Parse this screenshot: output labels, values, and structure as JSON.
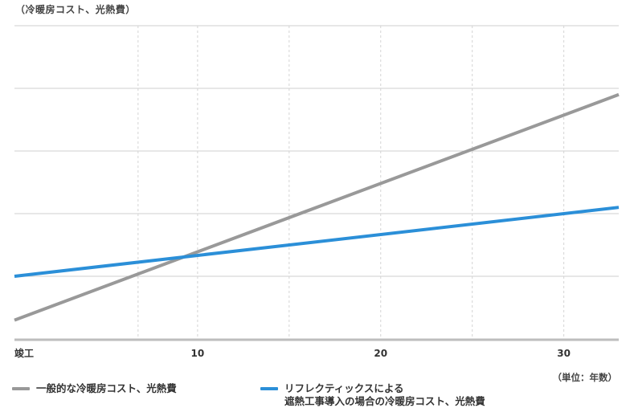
{
  "chart_data": {
    "type": "line",
    "y_unit_label": "（冷暖房コスト、光熱費）",
    "x_unit_label": "（単位：年数）",
    "x_ticks": [
      {
        "value": 0,
        "label": "竣工"
      },
      {
        "value": 10,
        "label": "10"
      },
      {
        "value": 20,
        "label": "20"
      },
      {
        "value": 30,
        "label": "30"
      }
    ],
    "xlim": [
      0,
      33
    ],
    "ylim": [
      0,
      5
    ],
    "y_gridlines": [
      1,
      2,
      3,
      4,
      5
    ],
    "x_gridlines": [
      6.75,
      10,
      15,
      20,
      25,
      30
    ],
    "x_axis_labeled_only": false,
    "y_tick_labels_shown": false,
    "grid": true,
    "legend_position": "bottom-left",
    "series": [
      {
        "name": "一般的な冷暖房コスト、光熱費",
        "color": "#999999",
        "points": [
          [
            0,
            0.3
          ],
          [
            33,
            3.9
          ]
        ]
      },
      {
        "name": "リフレクティックスによる遮熱工事導入の場合の冷暖房コスト、光熱費",
        "name_lines": [
          "リフレクティックスによる",
          "遮熱工事導入の場合の冷暖房コスト、光熱費"
        ],
        "color": "#2b8fd8",
        "points": [
          [
            0,
            1.0
          ],
          [
            33,
            2.1
          ]
        ]
      }
    ]
  }
}
